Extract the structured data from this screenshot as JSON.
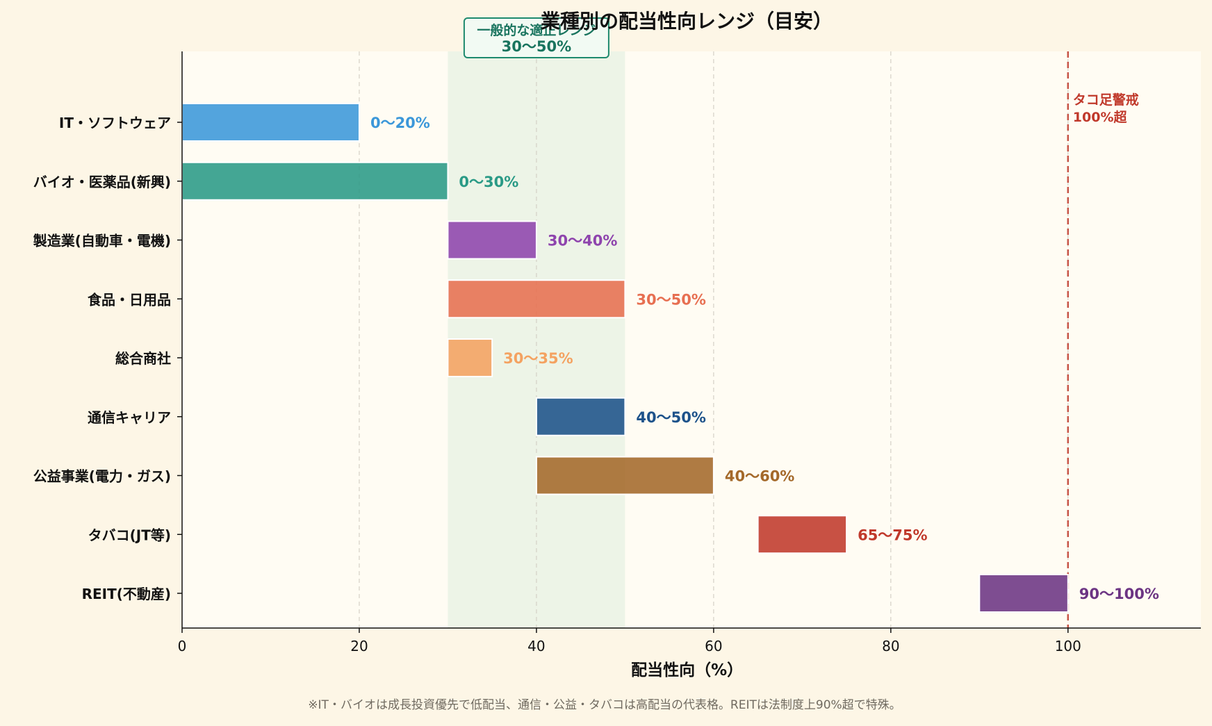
{
  "chart_data": {
    "type": "bar",
    "orientation": "horizontal-range",
    "title": "業種別の配当性向レンジ（目安）",
    "xlabel": "配当性向（%）",
    "ylabel": "",
    "xlim": [
      0,
      115
    ],
    "xticks": [
      0,
      20,
      40,
      60,
      80,
      100
    ],
    "grid": "x-dashed",
    "categories": [
      "IT・ソフトウェア",
      "バイオ・医薬品(新興)",
      "製造業(自動車・電機)",
      "食品・日用品",
      "総合商社",
      "通信キャリア",
      "公益事業(電力・ガス)",
      "タバコ(JT等)",
      "REIT(不動産)"
    ],
    "ranges": [
      {
        "start": 0,
        "end": 20,
        "label": "0〜20%",
        "color": "#3b97d9"
      },
      {
        "start": 0,
        "end": 30,
        "label": "0〜30%",
        "color": "#2a9a86"
      },
      {
        "start": 30,
        "end": 40,
        "label": "30〜40%",
        "color": "#8e44ad"
      },
      {
        "start": 30,
        "end": 50,
        "label": "30〜50%",
        "color": "#e76f51"
      },
      {
        "start": 30,
        "end": 35,
        "label": "30〜35%",
        "color": "#f4a261"
      },
      {
        "start": 40,
        "end": 50,
        "label": "40〜50%",
        "color": "#1d528a"
      },
      {
        "start": 40,
        "end": 60,
        "label": "40〜60%",
        "color": "#a4692a"
      },
      {
        "start": 65,
        "end": 75,
        "label": "65〜75%",
        "color": "#c0392b"
      },
      {
        "start": 90,
        "end": 100,
        "label": "90〜100%",
        "color": "#6c3483"
      }
    ],
    "band": {
      "start": 30,
      "end": 50,
      "label_line1": "一般的な適正レンジ",
      "label_line2": "30〜50%",
      "color": "#1e8a6e"
    },
    "threshold": {
      "value": 100,
      "label_line1": "タコ足警戒",
      "label_line2": "100%超",
      "color": "#c0392b"
    },
    "footnote": "※IT・バイオは成長投資優先で低配当、通信・公益・タバコは高配当の代表格。REITは法制度上90%超で特殊。"
  }
}
